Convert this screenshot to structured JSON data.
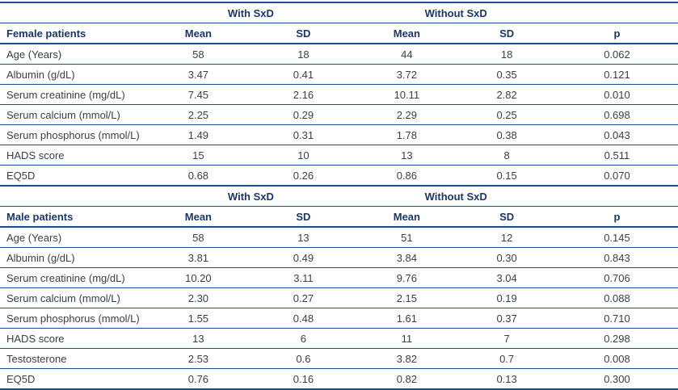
{
  "table": {
    "rule_color": "#1b4e91",
    "header_text_color": "#1b3768",
    "body_text_color": "#3b4046",
    "sections": [
      {
        "label": "Female patients",
        "group_headers": [
          "With SxD",
          "Without SxD"
        ],
        "col_headers": [
          "Mean",
          "SD",
          "Mean",
          "SD",
          "p"
        ],
        "rows": [
          {
            "name": "Age (Years)",
            "values": [
              "58",
              "18",
              "44",
              "18",
              "0.062"
            ]
          },
          {
            "name": "Albumin (g/dL)",
            "values": [
              "3.47",
              "0.41",
              "3.72",
              "0.35",
              "0.121"
            ]
          },
          {
            "name": "Serum creatinine (mg/dL)",
            "values": [
              "7.45",
              "2.16",
              "10.11",
              "2.82",
              "0.010"
            ]
          },
          {
            "name": "Serum calcium (mmol/L)",
            "values": [
              "2.25",
              "0.29",
              "2.29",
              "0.25",
              "0.698"
            ]
          },
          {
            "name": "Serum phosphorus (mmol/L)",
            "values": [
              "1.49",
              "0.31",
              "1.78",
              "0.38",
              "0.043"
            ]
          },
          {
            "name": "HADS score",
            "values": [
              "15",
              "10",
              "13",
              "8",
              "0.511"
            ]
          },
          {
            "name": "EQ5D",
            "values": [
              "0.68",
              "0.26",
              "0.86",
              "0.15",
              "0.070"
            ]
          }
        ]
      },
      {
        "label": "Male patients",
        "group_headers": [
          "With SxD",
          "Without SxD"
        ],
        "col_headers": [
          "Mean",
          "SD",
          "Mean",
          "SD",
          "p"
        ],
        "rows": [
          {
            "name": "Age (Years)",
            "values": [
              "58",
              "13",
              "51",
              "12",
              "0.145"
            ]
          },
          {
            "name": "Albumin (g/dL)",
            "values": [
              "3.81",
              "0.49",
              "3.84",
              "0.30",
              "0.843"
            ]
          },
          {
            "name": "Serum creatinine (mg/dL)",
            "values": [
              "10.20",
              "3.11",
              "9.76",
              "3.04",
              "0.706"
            ]
          },
          {
            "name": "Serum calcium (mmol/L)",
            "values": [
              "2.30",
              "0.27",
              "2.15",
              "0.19",
              "0.088"
            ]
          },
          {
            "name": "Serum phosphorus (mmol/L)",
            "values": [
              "1.55",
              "0.48",
              "1.61",
              "0.37",
              "0.710"
            ]
          },
          {
            "name": "HADS score",
            "values": [
              "13",
              "6",
              "11",
              "7",
              "0.298"
            ]
          },
          {
            "name": "Testosterone",
            "values": [
              "2.53",
              "0.6",
              "3.82",
              "0.7",
              "0.008"
            ]
          },
          {
            "name": "EQ5D",
            "values": [
              "0.76",
              "0.16",
              "0.82",
              "0.13",
              "0.300"
            ]
          }
        ]
      }
    ]
  }
}
